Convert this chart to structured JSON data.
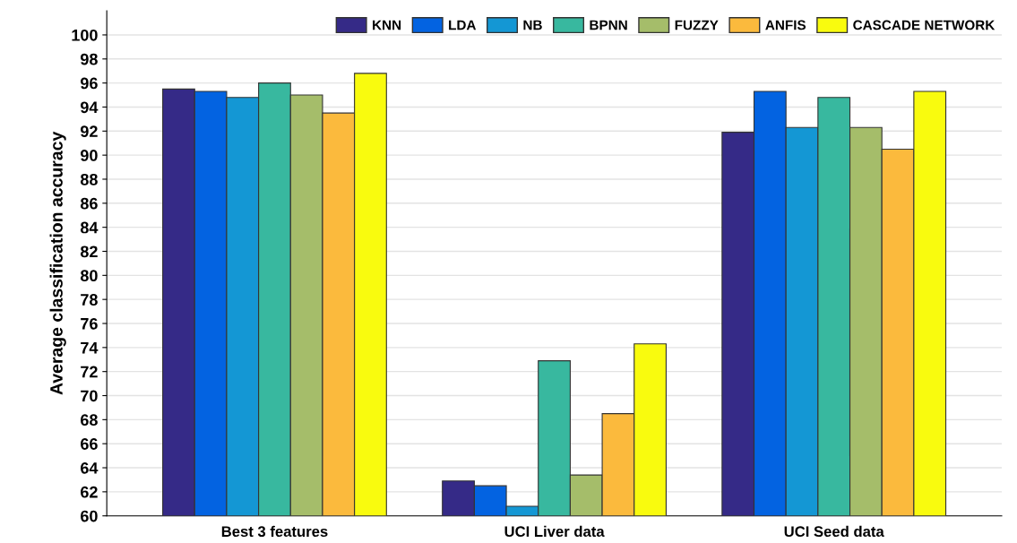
{
  "chart_data": {
    "type": "bar",
    "ylabel": "Average classification accuracy",
    "categories": [
      "Best 3 features",
      "UCI Liver data",
      "UCI Seed data"
    ],
    "series": [
      {
        "name": "KNN",
        "color": "#352a87",
        "values": [
          95.5,
          62.9,
          91.9
        ]
      },
      {
        "name": "LDA",
        "color": "#0363e1",
        "values": [
          95.3,
          62.5,
          95.3
        ]
      },
      {
        "name": "NB",
        "color": "#1497d4",
        "values": [
          94.8,
          60.8,
          92.3
        ]
      },
      {
        "name": "BPNN",
        "color": "#38b89f",
        "values": [
          96.0,
          72.9,
          94.8
        ]
      },
      {
        "name": "FUZZY",
        "color": "#a5bd6a",
        "values": [
          95.0,
          63.4,
          92.3
        ]
      },
      {
        "name": "ANFIS",
        "color": "#fbba3d",
        "values": [
          93.5,
          68.5,
          90.5
        ]
      },
      {
        "name": "CASCADE NETWORK",
        "color": "#f9fb0e",
        "values": [
          96.8,
          74.3,
          95.3
        ]
      }
    ],
    "ylim": [
      60,
      102
    ],
    "yticks": [
      60,
      62,
      64,
      66,
      68,
      70,
      72,
      74,
      76,
      78,
      80,
      82,
      84,
      86,
      88,
      90,
      92,
      94,
      96,
      98,
      100
    ],
    "grid": "y",
    "legend": "top right"
  }
}
